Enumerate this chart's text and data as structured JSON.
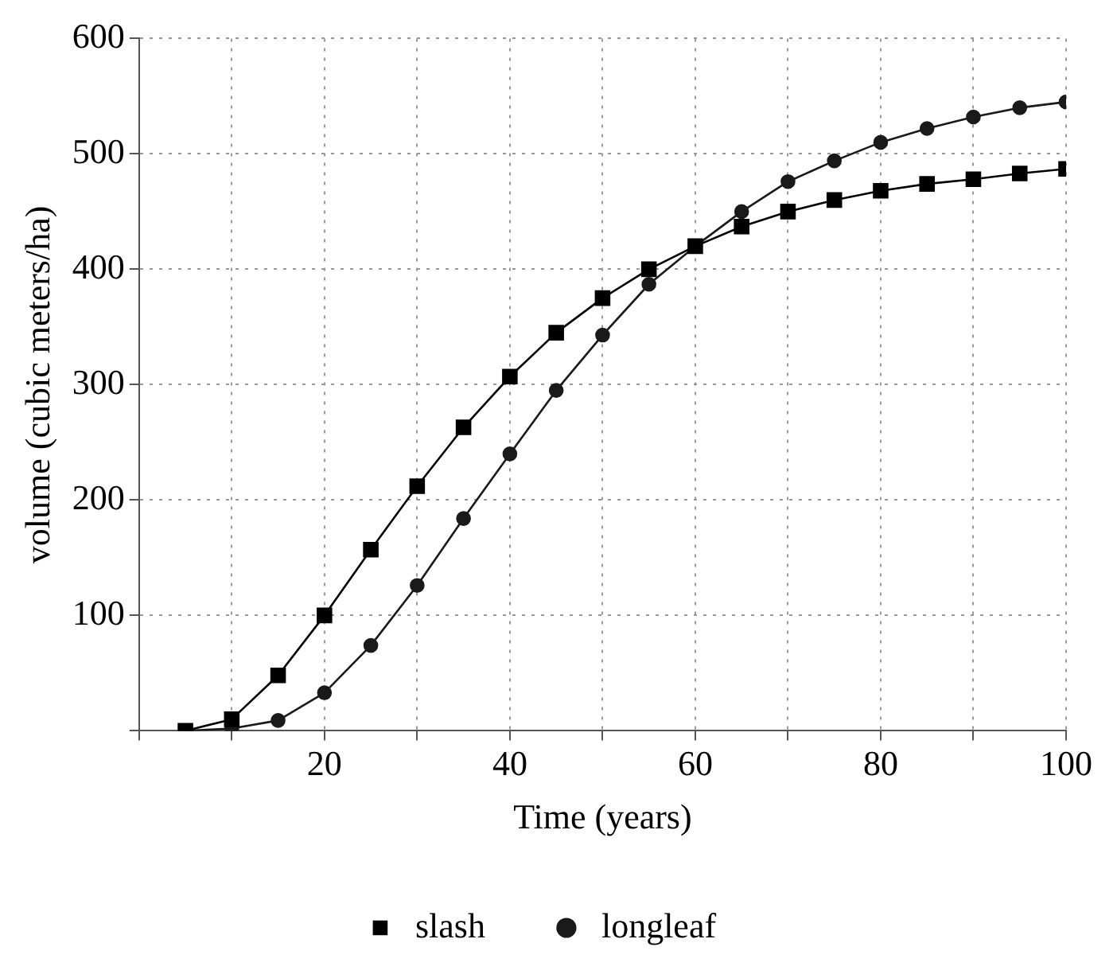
{
  "chart_data": {
    "type": "line",
    "xlabel": "Time (years)",
    "ylabel": "volume (cubic meters/ha)",
    "x": [
      5,
      10,
      15,
      20,
      25,
      30,
      35,
      40,
      45,
      50,
      55,
      60,
      65,
      70,
      75,
      80,
      85,
      90,
      95,
      100
    ],
    "series": [
      {
        "name": "slash",
        "color": "#000000",
        "marker": "square",
        "values": [
          0,
          10,
          48,
          100,
          157,
          212,
          263,
          307,
          345,
          375,
          400,
          420,
          437,
          450,
          460,
          468,
          474,
          478,
          483,
          487
        ]
      },
      {
        "name": "longleaf",
        "color": "#1a1a1a",
        "marker": "circle",
        "values": [
          0,
          2,
          9,
          33,
          74,
          126,
          184,
          240,
          295,
          343,
          387,
          420,
          450,
          476,
          494,
          510,
          522,
          532,
          540,
          545
        ]
      }
    ],
    "xlim": [
      0,
      100
    ],
    "xticks": [
      {
        "value": 0,
        "label": null
      },
      {
        "value": 10,
        "label": null
      },
      20,
      {
        "value": 30,
        "label": null
      },
      40,
      {
        "value": 50,
        "label": null
      },
      60,
      {
        "value": 70,
        "label": null
      },
      80,
      {
        "value": 90,
        "label": null
      },
      100
    ],
    "ylim": [
      0,
      600
    ],
    "yticks": [
      {
        "value": 0,
        "label": null
      },
      100,
      200,
      300,
      400,
      500,
      600
    ],
    "grid": true,
    "legend": "bottom",
    "line_style": "solid"
  }
}
